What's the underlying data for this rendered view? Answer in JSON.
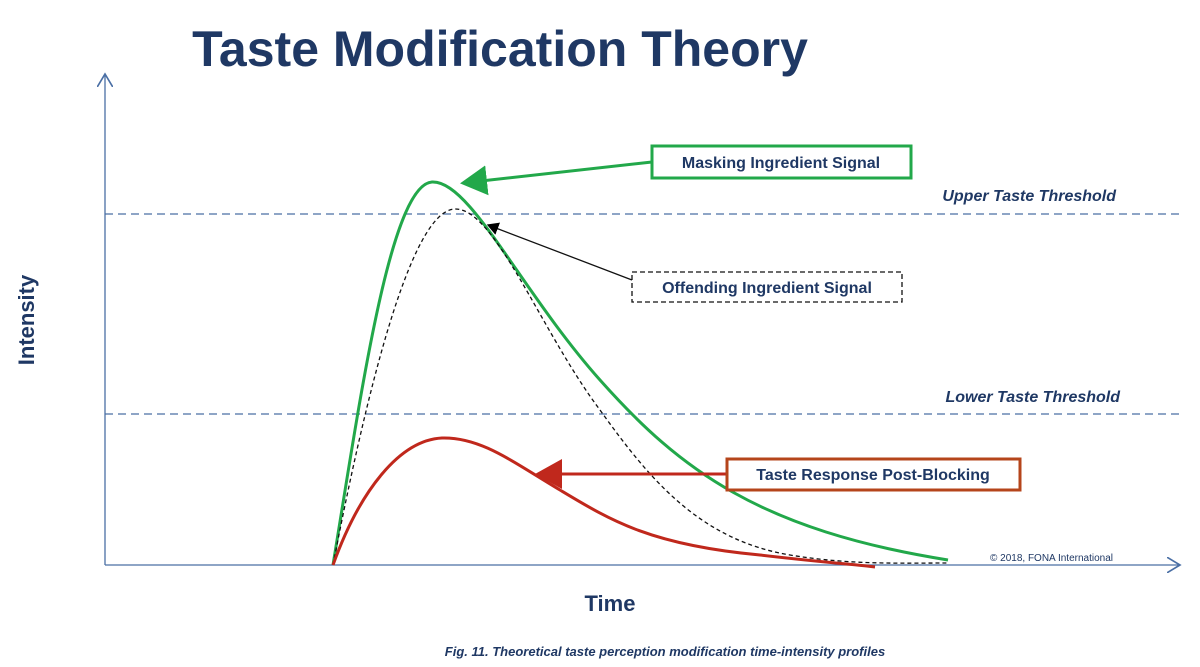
{
  "title": "Taste Modification Theory",
  "y_axis_label": "Intensity",
  "x_axis_label": "Time",
  "thresholds": {
    "upper": "Upper Taste Threshold",
    "lower": "Lower Taste Threshold"
  },
  "callouts": {
    "masking": "Masking Ingredient Signal",
    "offending": "Offending Ingredient Signal",
    "blocking": "Taste Response Post-Blocking"
  },
  "copyright": "© 2018, FONA International",
  "caption": "Fig. 11. Theoretical taste perception modification time-intensity profiles"
}
